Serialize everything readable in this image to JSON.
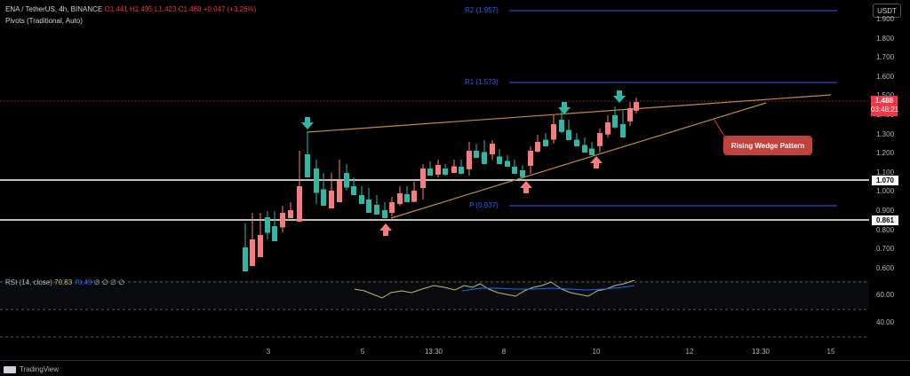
{
  "header": {
    "symbol": "ENA / TetherUS, 4h, BINANCE",
    "open": "O1.441",
    "high": "H1.495",
    "low": "L1.423",
    "close": "C1.488",
    "change": "+0.047 (+3.26%)",
    "indicator": "Pivots (Traditional, Auto)"
  },
  "pivots": {
    "r2": "R2 (1.957)",
    "r1": "R1 (1.573)",
    "p": "P (0.937)"
  },
  "price_axis": {
    "currency": "USDT",
    "ticks": [
      "1.900",
      "1.800",
      "1.700",
      "1.600",
      "1.500",
      "1.400",
      "1.300",
      "1.200",
      "1.100",
      "1.000",
      "0.900",
      "0.800",
      "0.700",
      "0.600"
    ],
    "current_price": "1.488",
    "countdown": "03:48:21",
    "level_upper": "1.070",
    "level_lower": "0.861"
  },
  "rsi": {
    "label": "RSI (14, close)",
    "value": "70.83",
    "value2": "70.49",
    "placeholders": "∅ ∅ ∅ ∅",
    "ticks": [
      "60.00",
      "40.00"
    ]
  },
  "time_axis": [
    "3",
    "5",
    "13:30",
    "8",
    "10",
    "12",
    "13:30",
    "15"
  ],
  "annotation": {
    "callout": "Rising Wedge Pattern"
  },
  "footer": {
    "brand": "TradingView"
  },
  "colors": {
    "up": "#26a69a",
    "down": "#f23645",
    "candle_down": "#f77c80",
    "candle_up": "#2fb8a6",
    "wedge": "#c58a3c",
    "pivot": "#2962ff"
  }
}
